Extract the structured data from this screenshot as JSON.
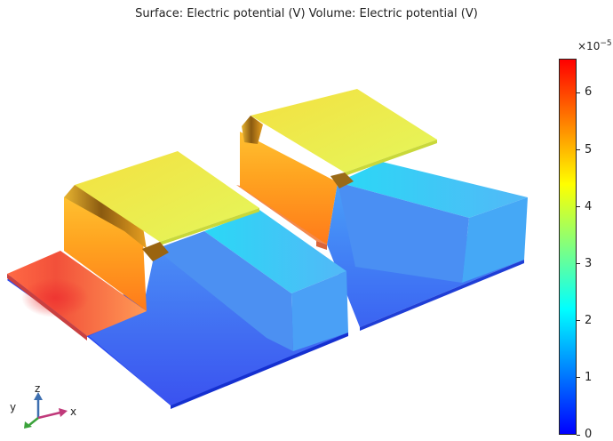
{
  "title": "Surface: Electric potential (V)  Volume: Electric potential (V)",
  "colorbar": {
    "multiplier_base": "×10",
    "multiplier_exponent": "−5",
    "min": 0,
    "max": 6.6,
    "ticks": [
      {
        "value": 6,
        "label": "6"
      },
      {
        "value": 5,
        "label": "5"
      },
      {
        "value": 4,
        "label": "4"
      },
      {
        "value": 3,
        "label": "3"
      },
      {
        "value": 2,
        "label": "2"
      },
      {
        "value": 1,
        "label": "1"
      },
      {
        "value": 0,
        "label": "0"
      }
    ],
    "colormap": "rainbow",
    "colors": [
      "#0000ff",
      "#0080ff",
      "#00ffff",
      "#80ff80",
      "#ffff00",
      "#ff8000",
      "#ff0000"
    ]
  },
  "axes": {
    "x_label": "x",
    "y_label": "y",
    "z_label": "z",
    "x_color": "#c0397a",
    "y_color": "#3aa23a",
    "z_color": "#3d6fb0"
  }
}
